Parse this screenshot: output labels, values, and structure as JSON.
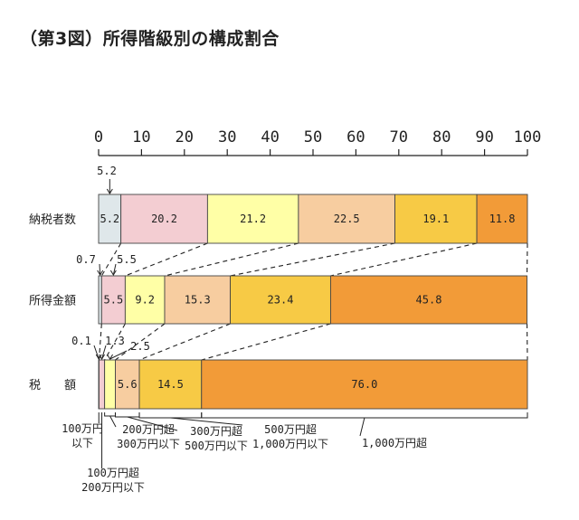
{
  "page_title": "（第3図）所得階級別の構成割合",
  "chart_data": {
    "type": "bar",
    "stacked": true,
    "orientation": "horizontal",
    "title": "（第3図）所得階級別の構成割合",
    "xlim": [
      0,
      100
    ],
    "xticks": [
      "0",
      "10",
      "20",
      "30",
      "40",
      "50",
      "60",
      "70",
      "80",
      "90",
      "100"
    ],
    "grid": false,
    "categories": [
      "納税者数",
      "所得金額",
      "税　　額"
    ],
    "series": [
      {
        "name": "100万円以下",
        "color": "#dfe7ea",
        "values": [
          5.2,
          0.7,
          0.1
        ],
        "labels": [
          "5.2",
          "0.7",
          "0.1"
        ]
      },
      {
        "name": "100万円超 200万円以下",
        "color": "#f3cdd2",
        "values": [
          20.2,
          5.5,
          1.3
        ],
        "labels": [
          "20.2",
          "5.5",
          "1.3"
        ]
      },
      {
        "name": "200万円超 300万円以下",
        "color": "#ffffa6",
        "values": [
          21.2,
          9.2,
          2.5
        ],
        "labels": [
          "21.2",
          "9.2",
          "2.5"
        ]
      },
      {
        "name": "300万円超 500万円以下",
        "color": "#f7cda0",
        "values": [
          22.5,
          15.3,
          5.6
        ],
        "labels": [
          "22.5",
          "15.3",
          "5.6"
        ]
      },
      {
        "name": "500万円超 1,000万円以下",
        "color": "#f7ca45",
        "values": [
          19.1,
          23.4,
          14.5
        ],
        "labels": [
          "19.1",
          "23.4",
          "14.5"
        ]
      },
      {
        "name": "1,000万円超",
        "color": "#f29b38",
        "values": [
          11.8,
          45.8,
          76.0
        ],
        "labels": [
          "11.8",
          "45.8",
          "76.0"
        ]
      }
    ],
    "legend_labels": [
      [
        "100万円",
        "以下"
      ],
      [
        "100万円超",
        "200万円以下"
      ],
      [
        "200万円超",
        "300万円以下"
      ],
      [
        "300万円超",
        "500万円以下"
      ],
      [
        "500万円超",
        "1,000万円以下"
      ],
      [
        "1,000万円超"
      ]
    ]
  }
}
